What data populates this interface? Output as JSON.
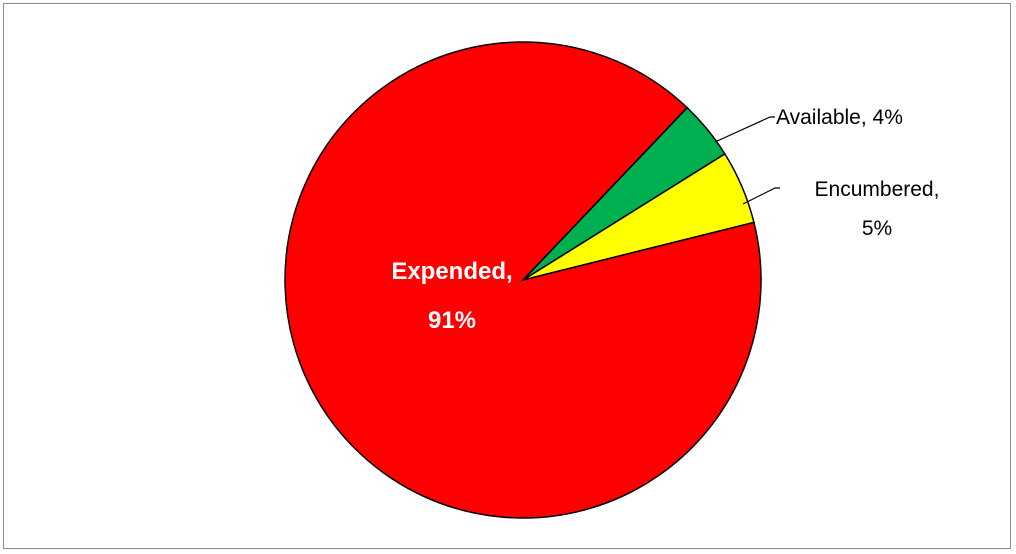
{
  "chart_data": {
    "type": "pie",
    "title": "",
    "slices": [
      {
        "label": "Expended",
        "value": 91,
        "percent_label": "91%",
        "color": "#ff0000"
      },
      {
        "label": "Available",
        "value": 4,
        "percent_label": "4%",
        "color": "#00b050"
      },
      {
        "label": "Encumbered",
        "value": 5,
        "percent_label": "5%",
        "color": "#ffff00"
      }
    ],
    "data_labels": {
      "expended": {
        "line1": "Expended,",
        "line2": "91%"
      },
      "available": {
        "line1": "Available, 4%"
      },
      "encumbered": {
        "line1": "Encumbered,",
        "line2": "5%"
      }
    },
    "legend": "none",
    "grid": false
  }
}
